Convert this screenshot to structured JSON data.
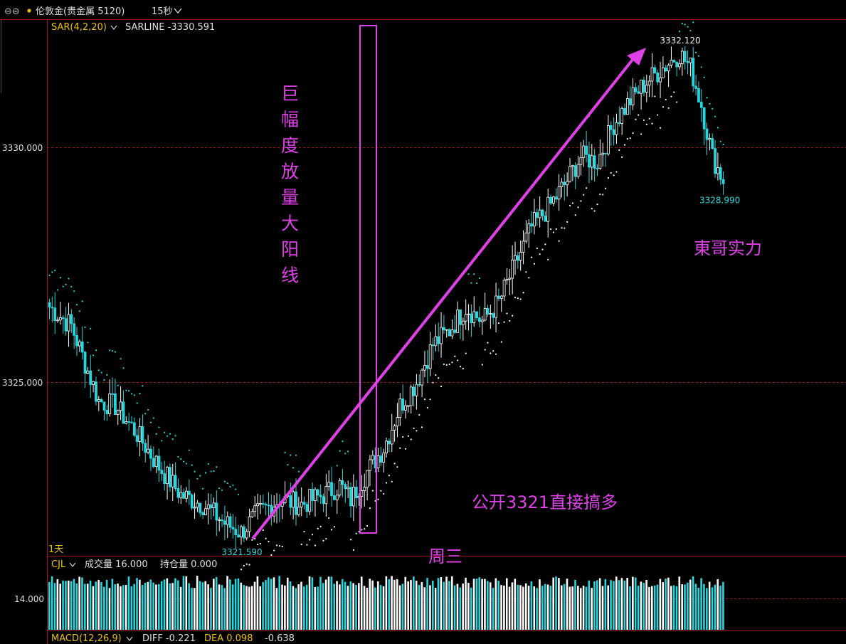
{
  "header": {
    "link_icon": "link-icon",
    "instrument": "伦敦金(贵金属 5120)",
    "interval": "15秒",
    "sar_label": "SAR(4,2,20)",
    "sarline": "SARLINE -3330.591",
    "period_label": "1天",
    "cjl_label": "CJL",
    "volume_text": "成交量 16.000",
    "open_interest_text": "持仓量 0.000",
    "macd_label": "MACD(12,26,9)",
    "diff_text": "DIFF -0.221",
    "dea_text": "DEA 0.098",
    "macd_value": "-0.638"
  },
  "colors": {
    "up": "#ffffff",
    "down": "#27d6dc",
    "annotation": "#e040e8",
    "axis_red": "#a0141e",
    "sar_up": "#ffffff",
    "sar_down": "#27d6dc"
  },
  "annotations": {
    "vertical_text": "巨幅度放量大阳线",
    "brand": "東哥实力",
    "call": "公开3321直接搞多",
    "day": "周三"
  },
  "chart_data": {
    "type": "candlestick",
    "title": "",
    "y_ticks": [
      {
        "value": 3330.0,
        "label": "3330.000"
      },
      {
        "value": 3325.0,
        "label": "3325.000"
      }
    ],
    "price_range": [
      3320.6,
      3332.7
    ],
    "high_label": {
      "value": 3332.12,
      "text": "3332.120"
    },
    "low_label": {
      "value": 3321.59,
      "text": "3321.590"
    },
    "last_label": {
      "value": 3328.99,
      "text": "3328.990"
    },
    "anchors": [
      [
        0,
        3326.6
      ],
      [
        8,
        3326.2
      ],
      [
        13,
        3325.4
      ],
      [
        18,
        3324.6
      ],
      [
        24,
        3324.5
      ],
      [
        32,
        3323.9
      ],
      [
        40,
        3323.2
      ],
      [
        48,
        3322.6
      ],
      [
        56,
        3322.4
      ],
      [
        64,
        3322.0
      ],
      [
        70,
        3321.8
      ],
      [
        76,
        3322.2
      ],
      [
        84,
        3322.5
      ],
      [
        92,
        3322.4
      ],
      [
        100,
        3322.6
      ],
      [
        106,
        3322.8
      ],
      [
        110,
        3322.5
      ],
      [
        116,
        3323.1
      ],
      [
        122,
        3323.6
      ],
      [
        128,
        3324.5
      ],
      [
        134,
        3325.0
      ],
      [
        140,
        3325.8
      ],
      [
        146,
        3326.1
      ],
      [
        152,
        3326.6
      ],
      [
        158,
        3326.3
      ],
      [
        164,
        3326.7
      ],
      [
        170,
        3327.5
      ],
      [
        176,
        3328.3
      ],
      [
        182,
        3328.7
      ],
      [
        188,
        3329.2
      ],
      [
        194,
        3329.8
      ],
      [
        200,
        3329.7
      ],
      [
        206,
        3330.5
      ],
      [
        212,
        3331.0
      ],
      [
        218,
        3331.4
      ],
      [
        224,
        3331.7
      ],
      [
        230,
        3332.0
      ],
      [
        234,
        3331.7
      ],
      [
        238,
        3330.9
      ],
      [
        242,
        3329.8
      ],
      [
        246,
        3329.3
      ]
    ],
    "volume_axis": {
      "label": "14.000",
      "value": 14.0,
      "max": 20.0
    }
  }
}
